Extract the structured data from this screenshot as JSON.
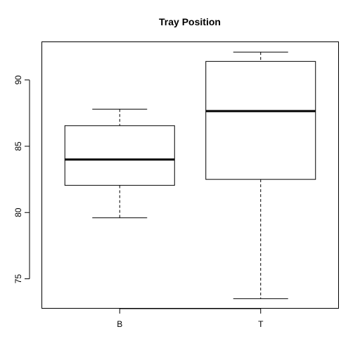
{
  "chart_data": {
    "type": "boxplot",
    "title": "Tray Position",
    "xlabel": "",
    "ylabel": "",
    "categories": [
      "B",
      "T"
    ],
    "boxes": [
      {
        "category": "B",
        "whisker_low": 79.6,
        "q1": 82.05,
        "median": 84.0,
        "q3": 86.55,
        "whisker_high": 87.8
      },
      {
        "category": "T",
        "whisker_low": 73.5,
        "q1": 82.5,
        "median": 87.65,
        "q3": 91.4,
        "whisker_high": 92.1
      }
    ],
    "y_ticks": [
      75,
      80,
      85,
      90
    ],
    "y_tick_labels": [
      "75",
      "80",
      "85",
      "90"
    ],
    "ylim": [
      72.8,
      92.85
    ],
    "grid": false,
    "legend": "none",
    "colors": {
      "box_fill": "#ffffff",
      "stroke": "#000000",
      "background": "#ffffff"
    }
  }
}
